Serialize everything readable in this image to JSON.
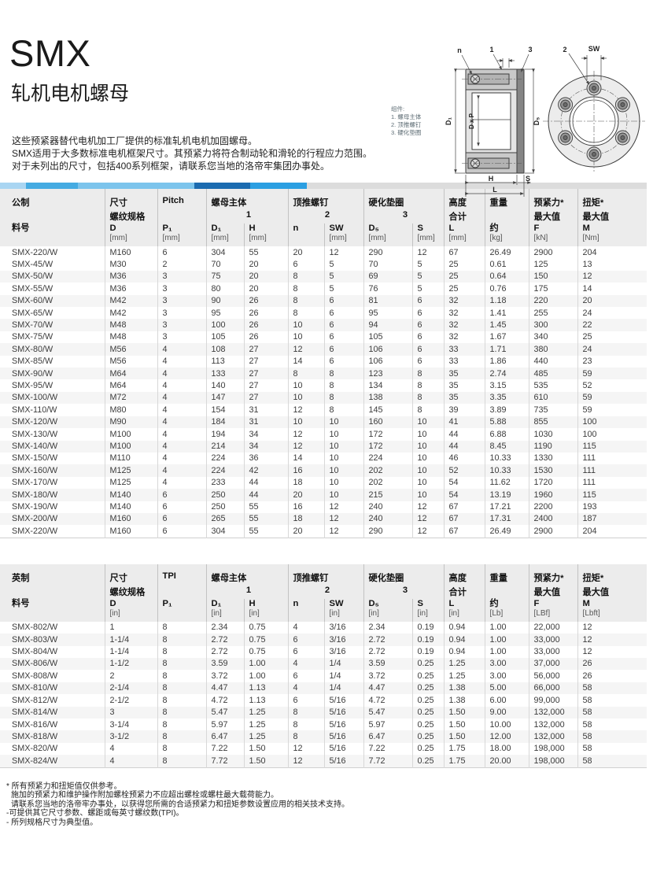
{
  "page": {
    "title": "SMX",
    "subtitle": "轧机电机螺母",
    "description": [
      "这些预紧器替代电机加工厂提供的标准轧机电机加固螺母。",
      "SMX适用于大多数标准电机框架尺寸。其预紧力将符合制动轮和滑轮的行程应力范围。",
      "对于未列出的尺寸，包括400系列框架，请联系您当地的洛帝牢集团办事处。"
    ]
  },
  "diagram": {
    "legend_title": "组件:",
    "legend_items": [
      "1. 螺母主体",
      "2. 顶推螺钉",
      "3. 硬化垫圈"
    ],
    "section_labels": {
      "n": "n",
      "one": "1",
      "three": "3",
      "d1": "D₁",
      "dxp": "D x P",
      "ds": "D₅",
      "h": "H",
      "s": "S",
      "l": "L"
    },
    "front_labels": {
      "two": "2",
      "sw": "SW"
    }
  },
  "accent_bar": {
    "segments": [
      {
        "w": 33,
        "c": "#a9d5f2"
      },
      {
        "w": 66,
        "c": "#45abe2"
      },
      {
        "w": 148,
        "c": "#7cc4ec"
      },
      {
        "w": 71,
        "c": "#1b6bb0"
      },
      {
        "w": 72,
        "c": "#2b9fe2"
      }
    ],
    "rest_color": "#dcdcdc"
  },
  "metric_table": {
    "groups": [
      "公制",
      "尺寸",
      "Pitch",
      "螺母主体",
      "顶推螺钉",
      "硬化垫圈",
      "高度",
      "重量",
      "预紧力*",
      "扭矩*"
    ],
    "refs": [
      "",
      "螺纹规格",
      "",
      "1",
      "2",
      "3",
      "合计",
      "",
      "最大值",
      "最大值"
    ],
    "syms": [
      "料号",
      "D",
      "P₁",
      "D₁",
      "H",
      "n",
      "SW",
      "D₅",
      "S",
      "L",
      "约",
      "F",
      "M"
    ],
    "units": [
      "",
      "[mm]",
      "[mm]",
      "[mm]",
      "[mm]",
      "",
      "[mm]",
      "[mm]",
      "[mm]",
      "[mm]",
      "[kg]",
      "[kN]",
      "[Nm]"
    ],
    "rows": [
      [
        "SMX-220/W",
        "M160",
        "6",
        "304",
        "55",
        "20",
        "12",
        "290",
        "12",
        "67",
        "26.49",
        "2900",
        "204"
      ],
      [
        "SMX-45/W",
        "M30",
        "2",
        "70",
        "20",
        "6",
        "5",
        "70",
        "5",
        "25",
        "0.61",
        "125",
        "13"
      ],
      [
        "SMX-50/W",
        "M36",
        "3",
        "75",
        "20",
        "8",
        "5",
        "69",
        "5",
        "25",
        "0.64",
        "150",
        "12"
      ],
      [
        "SMX-55/W",
        "M36",
        "3",
        "80",
        "20",
        "8",
        "5",
        "76",
        "5",
        "25",
        "0.76",
        "175",
        "14"
      ],
      [
        "SMX-60/W",
        "M42",
        "3",
        "90",
        "26",
        "8",
        "6",
        "81",
        "6",
        "32",
        "1.18",
        "220",
        "20"
      ],
      [
        "SMX-65/W",
        "M42",
        "3",
        "95",
        "26",
        "8",
        "6",
        "95",
        "6",
        "32",
        "1.41",
        "255",
        "24"
      ],
      [
        "SMX-70/W",
        "M48",
        "3",
        "100",
        "26",
        "10",
        "6",
        "94",
        "6",
        "32",
        "1.45",
        "300",
        "22"
      ],
      [
        "SMX-75/W",
        "M48",
        "3",
        "105",
        "26",
        "10",
        "6",
        "105",
        "6",
        "32",
        "1.67",
        "340",
        "25"
      ],
      [
        "SMX-80/W",
        "M56",
        "4",
        "108",
        "27",
        "12",
        "6",
        "106",
        "6",
        "33",
        "1.71",
        "380",
        "24"
      ],
      [
        "SMX-85/W",
        "M56",
        "4",
        "113",
        "27",
        "14",
        "6",
        "106",
        "6",
        "33",
        "1.86",
        "440",
        "23"
      ],
      [
        "SMX-90/W",
        "M64",
        "4",
        "133",
        "27",
        "8",
        "8",
        "123",
        "8",
        "35",
        "2.74",
        "485",
        "59"
      ],
      [
        "SMX-95/W",
        "M64",
        "4",
        "140",
        "27",
        "10",
        "8",
        "134",
        "8",
        "35",
        "3.15",
        "535",
        "52"
      ],
      [
        "SMX-100/W",
        "M72",
        "4",
        "147",
        "27",
        "10",
        "8",
        "138",
        "8",
        "35",
        "3.35",
        "610",
        "59"
      ],
      [
        "SMX-110/W",
        "M80",
        "4",
        "154",
        "31",
        "12",
        "8",
        "145",
        "8",
        "39",
        "3.89",
        "735",
        "59"
      ],
      [
        "SMX-120/W",
        "M90",
        "4",
        "184",
        "31",
        "10",
        "10",
        "160",
        "10",
        "41",
        "5.88",
        "855",
        "100"
      ],
      [
        "SMX-130/W",
        "M100",
        "4",
        "194",
        "34",
        "12",
        "10",
        "172",
        "10",
        "44",
        "6.88",
        "1030",
        "100"
      ],
      [
        "SMX-140/W",
        "M100",
        "4",
        "214",
        "34",
        "12",
        "10",
        "172",
        "10",
        "44",
        "8.45",
        "1190",
        "115"
      ],
      [
        "SMX-150/W",
        "M110",
        "4",
        "224",
        "36",
        "14",
        "10",
        "224",
        "10",
        "46",
        "10.33",
        "1330",
        "111"
      ],
      [
        "SMX-160/W",
        "M125",
        "4",
        "224",
        "42",
        "16",
        "10",
        "202",
        "10",
        "52",
        "10.33",
        "1530",
        "111"
      ],
      [
        "SMX-170/W",
        "M125",
        "4",
        "233",
        "44",
        "18",
        "10",
        "202",
        "10",
        "54",
        "11.62",
        "1720",
        "111"
      ],
      [
        "SMX-180/W",
        "M140",
        "6",
        "250",
        "44",
        "20",
        "10",
        "215",
        "10",
        "54",
        "13.19",
        "1960",
        "115"
      ],
      [
        "SMX-190/W",
        "M140",
        "6",
        "250",
        "55",
        "16",
        "12",
        "240",
        "12",
        "67",
        "17.21",
        "2200",
        "193"
      ],
      [
        "SMX-200/W",
        "M160",
        "6",
        "265",
        "55",
        "18",
        "12",
        "240",
        "12",
        "67",
        "17.31",
        "2400",
        "187"
      ],
      [
        "SMX-220/W",
        "M160",
        "6",
        "304",
        "55",
        "20",
        "12",
        "290",
        "12",
        "67",
        "26.49",
        "2900",
        "204"
      ]
    ]
  },
  "imperial_table": {
    "groups": [
      "英制",
      "尺寸",
      "TPI",
      "螺母主体",
      "顶推螺钉",
      "硬化垫圈",
      "高度",
      "重量",
      "预紧力*",
      "扭矩*"
    ],
    "refs": [
      "",
      "螺纹规格",
      "",
      "1",
      "2",
      "3",
      "合计",
      "",
      "最大值",
      "最大值"
    ],
    "syms": [
      "料号",
      "D",
      "P₁",
      "D₁",
      "H",
      "n",
      "SW",
      "D₅",
      "S",
      "L",
      "约",
      "F",
      "M"
    ],
    "units": [
      "",
      "[in]",
      "",
      "[in]",
      "[in]",
      "",
      "[in]",
      "[in]",
      "[in]",
      "[in]",
      "[Lb]",
      "[LBf]",
      "[Lbft]"
    ],
    "rows": [
      [
        "SMX-802/W",
        "1",
        "8",
        "2.34",
        "0.75",
        "4",
        "3/16",
        "2.34",
        "0.19",
        "0.94",
        "1.00",
        "22,000",
        "12"
      ],
      [
        "SMX-803/W",
        "1-1/4",
        "8",
        "2.72",
        "0.75",
        "6",
        "3/16",
        "2.72",
        "0.19",
        "0.94",
        "1.00",
        "33,000",
        "12"
      ],
      [
        "SMX-804/W",
        "1-1/4",
        "8",
        "2.72",
        "0.75",
        "6",
        "3/16",
        "2.72",
        "0.19",
        "0.94",
        "1.00",
        "33,000",
        "12"
      ],
      [
        "SMX-806/W",
        "1-1/2",
        "8",
        "3.59",
        "1.00",
        "4",
        "1/4",
        "3.59",
        "0.25",
        "1.25",
        "3.00",
        "37,000",
        "26"
      ],
      [
        "SMX-808/W",
        "2",
        "8",
        "3.72",
        "1.00",
        "6",
        "1/4",
        "3.72",
        "0.25",
        "1.25",
        "3.00",
        "56,000",
        "26"
      ],
      [
        "SMX-810/W",
        "2-1/4",
        "8",
        "4.47",
        "1.13",
        "4",
        "1/4",
        "4.47",
        "0.25",
        "1.38",
        "5.00",
        "66,000",
        "58"
      ],
      [
        "SMX-812/W",
        "2-1/2",
        "8",
        "4.72",
        "1.13",
        "6",
        "5/16",
        "4.72",
        "0.25",
        "1.38",
        "6.00",
        "99,000",
        "58"
      ],
      [
        "SMX-814/W",
        "3",
        "8",
        "5.47",
        "1.25",
        "8",
        "5/16",
        "5.47",
        "0.25",
        "1.50",
        "9.00",
        "132,000",
        "58"
      ],
      [
        "SMX-816/W",
        "3-1/4",
        "8",
        "5.97",
        "1.25",
        "8",
        "5/16",
        "5.97",
        "0.25",
        "1.50",
        "10.00",
        "132,000",
        "58"
      ],
      [
        "SMX-818/W",
        "3-1/2",
        "8",
        "6.47",
        "1.25",
        "8",
        "5/16",
        "6.47",
        "0.25",
        "1.50",
        "12.00",
        "132,000",
        "58"
      ],
      [
        "SMX-820/W",
        "4",
        "8",
        "7.22",
        "1.50",
        "12",
        "5/16",
        "7.22",
        "0.25",
        "1.75",
        "18.00",
        "198,000",
        "58"
      ],
      [
        "SMX-824/W",
        "4",
        "8",
        "7.72",
        "1.50",
        "12",
        "5/16",
        "7.72",
        "0.25",
        "1.75",
        "20.00",
        "198,000",
        "58"
      ]
    ]
  },
  "footnotes": [
    "* 所有预紧力和扭矩值仅供参考。",
    "施加的预紧力和维护操作附加螺栓预紧力不应超出螺栓或螺柱最大载荷能力。",
    "请联系您当地的洛帝牢办事处，以获得您所需的合适预紧力和扭矩参数设置应用的相关技术支持。",
    "-可提供其它尺寸参数、螺距或每英寸螺纹数(TPI)。",
    "- 所列规格尺寸为典型值。"
  ]
}
